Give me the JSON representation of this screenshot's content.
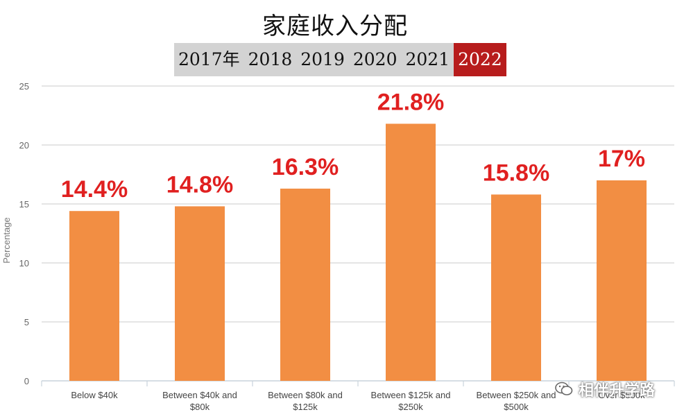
{
  "chart_data": {
    "type": "bar",
    "title": "家庭收入分配",
    "ylabel": "Percentage",
    "ylim": [
      0,
      25
    ],
    "yticks": [
      0,
      5,
      10,
      15,
      20,
      25
    ],
    "grid": true,
    "categories": [
      [
        "Below $40k"
      ],
      [
        "Between $40k and",
        "$80k"
      ],
      [
        "Between $80k and",
        "$125k"
      ],
      [
        "Between $125k and",
        "$250k"
      ],
      [
        "Between $250k and",
        "$500k"
      ],
      [
        "Over $500k"
      ]
    ],
    "values": [
      14.4,
      14.8,
      16.3,
      21.8,
      15.8,
      17
    ],
    "data_labels": [
      "14.4%",
      "14.8%",
      "16.3%",
      "21.8%",
      "15.8%",
      "17%"
    ],
    "bar_color": "#f28e43",
    "label_color": "#e02020"
  },
  "year_tabs": {
    "items": [
      "2017年",
      "2018",
      "2019",
      "2020",
      "2021",
      "2022"
    ],
    "active": "2022",
    "active_color": "#b71c1c",
    "inactive_color": "#d3d3d3"
  },
  "watermark": {
    "text": "相伴升学路",
    "icon": "wechat-icon"
  }
}
